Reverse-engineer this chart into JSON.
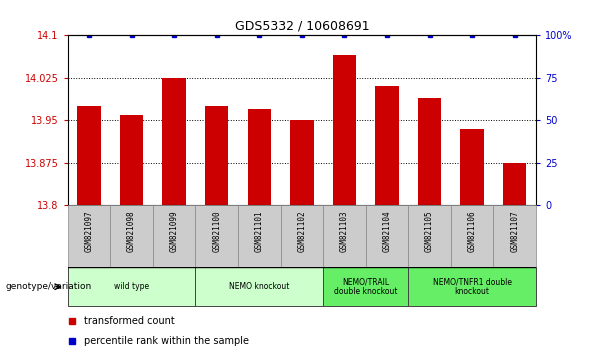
{
  "title": "GDS5332 / 10608691",
  "samples": [
    "GSM821097",
    "GSM821098",
    "GSM821099",
    "GSM821100",
    "GSM821101",
    "GSM821102",
    "GSM821103",
    "GSM821104",
    "GSM821105",
    "GSM821106",
    "GSM821107"
  ],
  "bar_values": [
    13.975,
    13.96,
    14.025,
    13.975,
    13.97,
    13.95,
    14.065,
    14.01,
    13.99,
    13.935,
    13.875
  ],
  "percentile_values": [
    100,
    100,
    100,
    100,
    100,
    100,
    100,
    100,
    100,
    100,
    100
  ],
  "ylim_left": [
    13.8,
    14.1
  ],
  "ylim_right": [
    0,
    100
  ],
  "yticks_left": [
    13.8,
    13.875,
    13.95,
    14.025,
    14.1
  ],
  "yticks_right": [
    0,
    25,
    50,
    75,
    100
  ],
  "ytick_labels_left": [
    "13.8",
    "13.875",
    "13.95",
    "14.025",
    "14.1"
  ],
  "ytick_labels_right": [
    "0",
    "25",
    "50",
    "75",
    "100%"
  ],
  "bar_color": "#cc0000",
  "percentile_color": "#0000cc",
  "grid_color": "#000000",
  "sample_box_color": "#cccccc",
  "sample_box_edge": "#888888",
  "groups": [
    {
      "label": "wild type",
      "indices": [
        0,
        1,
        2
      ],
      "color": "#ccffcc"
    },
    {
      "label": "NEMO knockout",
      "indices": [
        3,
        4,
        5
      ],
      "color": "#ccffcc"
    },
    {
      "label": "NEMO/TRAIL\ndouble knockout",
      "indices": [
        6,
        7
      ],
      "color": "#66ee66"
    },
    {
      "label": "NEMO/TNFR1 double\nknockout",
      "indices": [
        8,
        9,
        10
      ],
      "color": "#66ee66"
    }
  ],
  "xlabel_genotype": "genotype/variation",
  "legend_bar_label": "transformed count",
  "legend_pct_label": "percentile rank within the sample",
  "tick_color_left": "#cc0000",
  "tick_color_right": "#0000cc",
  "title_fontsize": 9,
  "bar_width": 0.55
}
